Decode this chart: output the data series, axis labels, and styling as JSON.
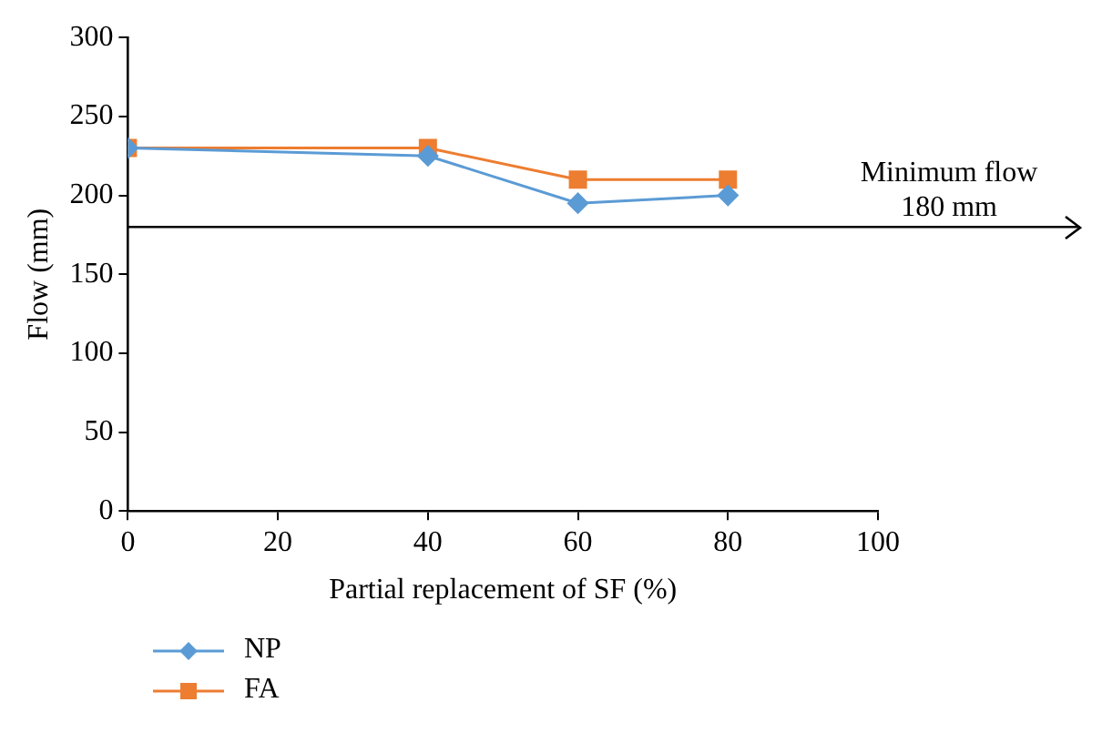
{
  "chart_data": {
    "type": "line",
    "xlabel": "Partial replacement of SF (%)",
    "ylabel": "Flow (mm)",
    "x": [
      0,
      40,
      60,
      80
    ],
    "series": [
      {
        "name": "NP",
        "color": "#5b9bd5",
        "values": [
          230,
          225,
          195,
          200
        ],
        "marker": "diamond"
      },
      {
        "name": "FA",
        "color": "#ed7d31",
        "values": [
          230,
          230,
          210,
          210
        ],
        "marker": "square"
      }
    ],
    "xlim": [
      0,
      100
    ],
    "xticks": [
      0,
      20,
      40,
      60,
      80,
      100
    ],
    "ylim": [
      0,
      300
    ],
    "yticks": [
      0,
      50,
      100,
      150,
      200,
      250,
      300
    ],
    "grid": false,
    "legend": "bottom left",
    "line_style": "solid",
    "ref_lines": [
      {
        "axis": "y",
        "value": 180,
        "label": "Minimum flow\n180 mm",
        "color": "#000000"
      }
    ]
  }
}
